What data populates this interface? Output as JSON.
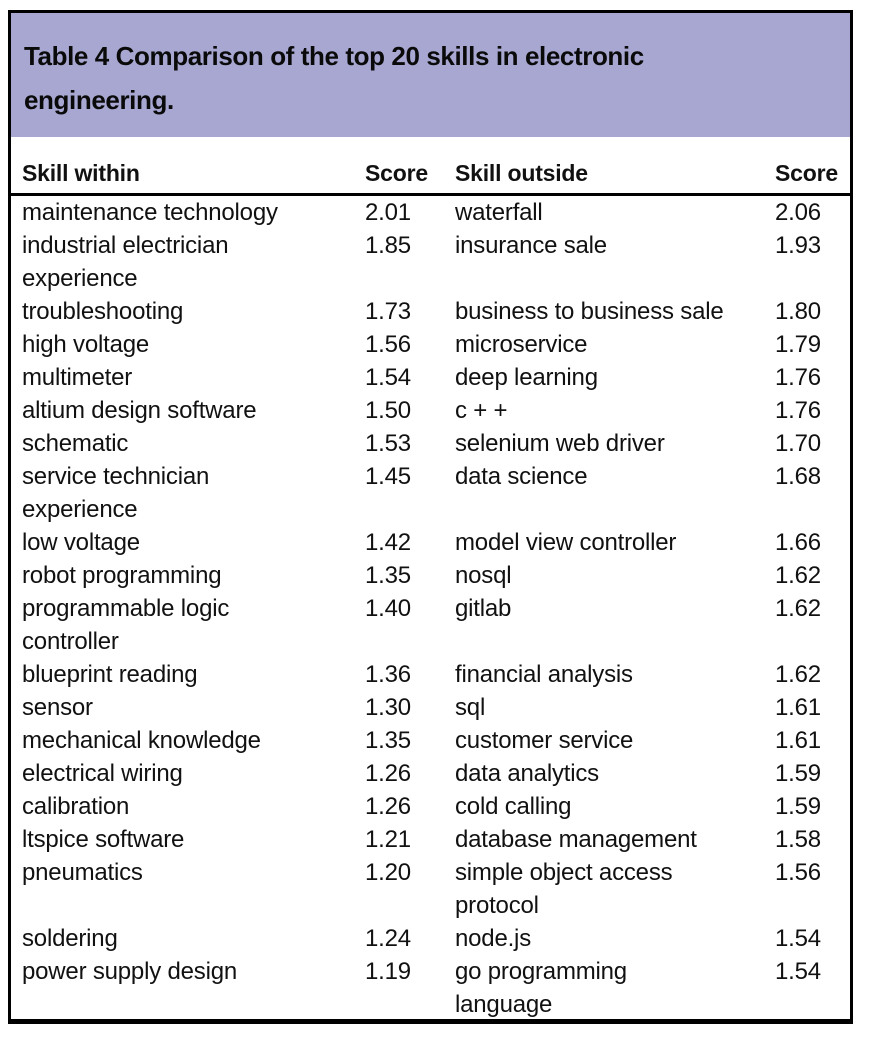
{
  "table": {
    "caption": "Table 4 Comparison of the top 20 skills in electronic\nengineering.",
    "columns": {
      "skill_within": "Skill within",
      "score_within": "Score",
      "skill_outside": "Skill outside",
      "score_outside": "Score"
    },
    "rows": [
      {
        "skill_within": "maintenance technology",
        "score_within": "2.01",
        "skill_outside": "waterfall",
        "score_outside": "2.06"
      },
      {
        "skill_within": "industrial electrician\nexperience",
        "score_within": "1.85",
        "skill_outside": "insurance sale",
        "score_outside": "1.93"
      },
      {
        "skill_within": "troubleshooting",
        "score_within": "1.73",
        "skill_outside": "business to business sale",
        "score_outside": "1.80"
      },
      {
        "skill_within": "high voltage",
        "score_within": "1.56",
        "skill_outside": "microservice",
        "score_outside": "1.79"
      },
      {
        "skill_within": "multimeter",
        "score_within": "1.54",
        "skill_outside": "deep learning",
        "score_outside": "1.76"
      },
      {
        "skill_within": "altium design software",
        "score_within": "1.50",
        "skill_outside": "c + +",
        "score_outside": "1.76"
      },
      {
        "skill_within": "schematic",
        "score_within": "1.53",
        "skill_outside": "selenium web driver",
        "score_outside": "1.70"
      },
      {
        "skill_within": "service technician\nexperience",
        "score_within": "1.45",
        "skill_outside": "data science",
        "score_outside": "1.68"
      },
      {
        "skill_within": "low voltage",
        "score_within": "1.42",
        "skill_outside": "model view controller",
        "score_outside": "1.66"
      },
      {
        "skill_within": "robot programming",
        "score_within": "1.35",
        "skill_outside": "nosql",
        "score_outside": "1.62"
      },
      {
        "skill_within": "programmable logic\ncontroller",
        "score_within": "1.40",
        "skill_outside": "gitlab",
        "score_outside": "1.62"
      },
      {
        "skill_within": "blueprint reading",
        "score_within": "1.36",
        "skill_outside": "financial analysis",
        "score_outside": "1.62"
      },
      {
        "skill_within": "sensor",
        "score_within": "1.30",
        "skill_outside": "sql",
        "score_outside": "1.61"
      },
      {
        "skill_within": "mechanical knowledge",
        "score_within": "1.35",
        "skill_outside": "customer service",
        "score_outside": "1.61"
      },
      {
        "skill_within": "electrical wiring",
        "score_within": "1.26",
        "skill_outside": "data analytics",
        "score_outside": "1.59"
      },
      {
        "skill_within": "calibration",
        "score_within": "1.26",
        "skill_outside": "cold calling",
        "score_outside": "1.59"
      },
      {
        "skill_within": "ltspice software",
        "score_within": "1.21",
        "skill_outside": "database management",
        "score_outside": "1.58"
      },
      {
        "skill_within": "pneumatics",
        "score_within": "1.20",
        "skill_outside": "simple object access\nprotocol",
        "score_outside": "1.56"
      },
      {
        "skill_within": "soldering",
        "score_within": "1.24",
        "skill_outside": "node.js",
        "score_outside": "1.54"
      },
      {
        "skill_within": "power supply design",
        "score_within": "1.19",
        "skill_outside": "go programming\nlanguage",
        "score_outside": "1.54"
      }
    ],
    "colors": {
      "caption_background": "#a7a7d2",
      "border": "#000000",
      "text": "#111111"
    }
  }
}
